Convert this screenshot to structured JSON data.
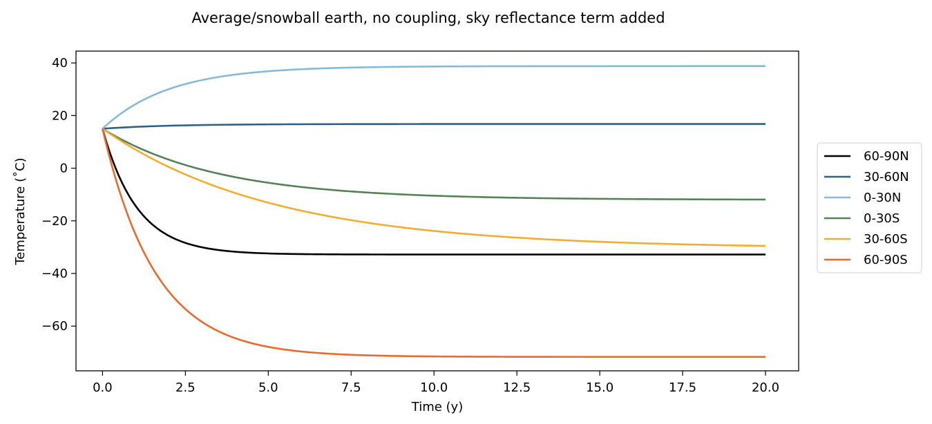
{
  "chart_data": {
    "type": "line",
    "title": "Average/snowball earth, no coupling, sky reflectance term added",
    "xlabel": "Time (y)",
    "ylabel": "Temperature (˚C)",
    "xlim": [
      -0.8,
      21.0
    ],
    "ylim": [
      -77.0,
      44.5
    ],
    "xticks": [
      0.0,
      2.5,
      5.0,
      7.5,
      10.0,
      12.5,
      15.0,
      17.5,
      20.0
    ],
    "xtick_labels": [
      "0.0",
      "2.5",
      "5.0",
      "7.5",
      "10.0",
      "12.5",
      "15.0",
      "17.5",
      "20.0"
    ],
    "yticks": [
      40,
      20,
      0,
      -20,
      -40,
      -60
    ],
    "ytick_labels": [
      "40",
      "20",
      "0",
      "−20",
      "−40",
      "−60"
    ],
    "grid": false,
    "legend_position": "center-right-outside",
    "x_range": [
      0,
      20
    ],
    "series": [
      {
        "name": "60-90N",
        "color": "#000000",
        "start": 15.0,
        "end": -32.8,
        "tau": 1.05
      },
      {
        "name": "30-60N",
        "color": "#2f5f8a",
        "start": 15.0,
        "end": 16.8,
        "tau": 2.0
      },
      {
        "name": "0-30N",
        "color": "#87b9d5",
        "start": 15.0,
        "end": 38.8,
        "tau": 2.0
      },
      {
        "name": "0-30S",
        "color": "#548155",
        "start": 15.0,
        "end": -12.0,
        "tau": 3.5
      },
      {
        "name": "30-60S",
        "color": "#f2ad2f",
        "start": 15.0,
        "end": -30.5,
        "tau": 5.2
      },
      {
        "name": "60-90S",
        "color": "#e8692a",
        "start": 15.0,
        "end": -71.7,
        "tau": 1.6
      }
    ]
  }
}
